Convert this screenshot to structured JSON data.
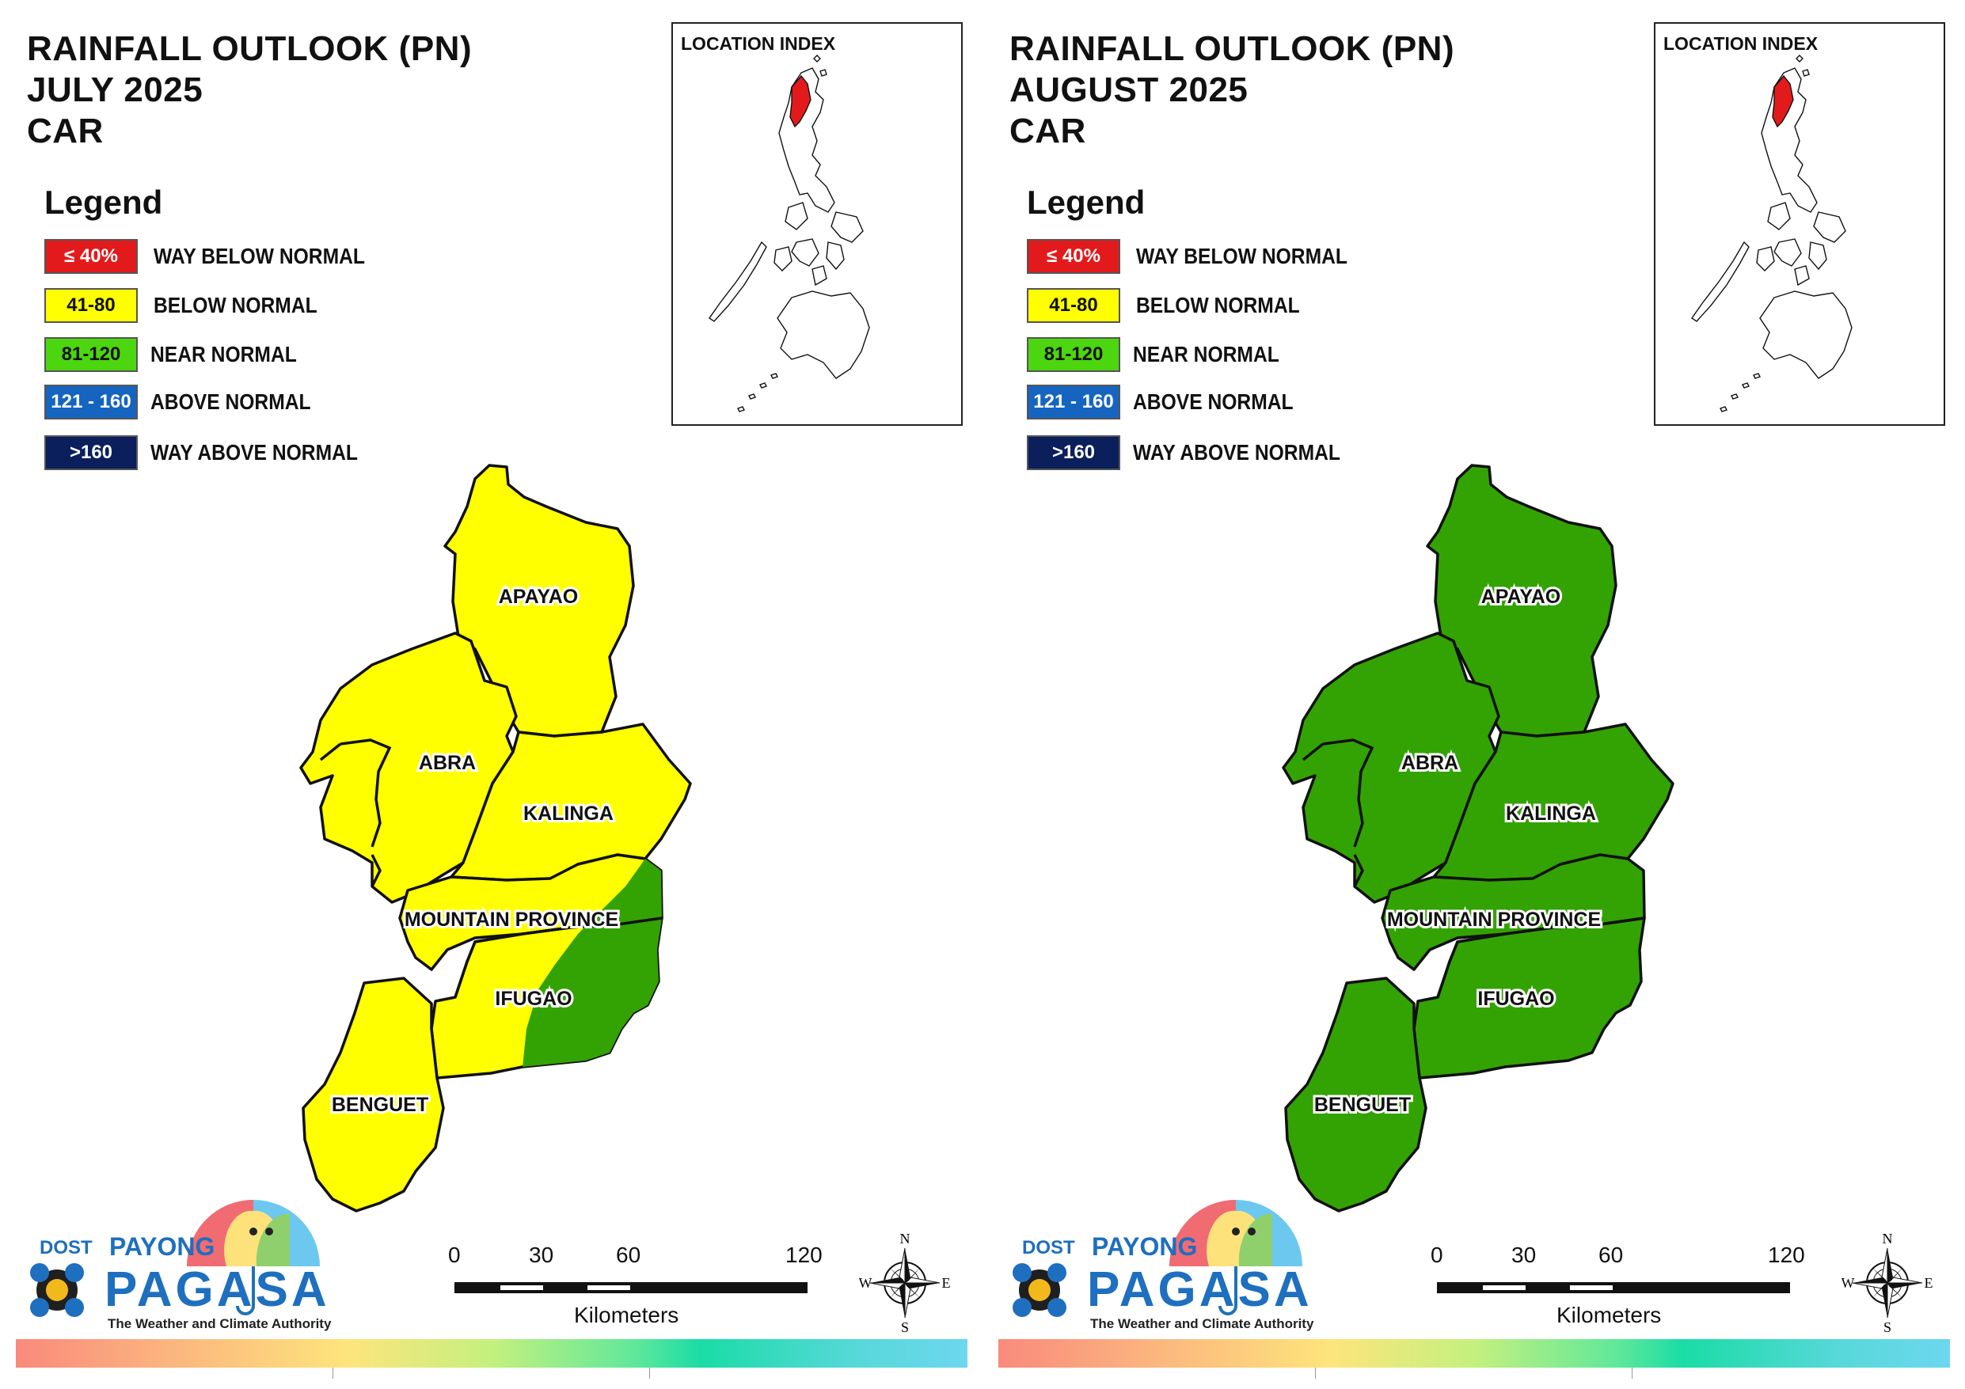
{
  "panels": [
    {
      "title_lines": [
        "RAINFALL OUTLOOK (PN)",
        "JULY 2025",
        "CAR"
      ],
      "legend_heading": "Legend",
      "legend": [
        {
          "swatch": "≤ 40%",
          "label": "WAY BELOW NORMAL",
          "color": "#e31a1c",
          "text_color": "#ffffff"
        },
        {
          "swatch": "41-80",
          "label": "BELOW NORMAL",
          "color": "#ffff00",
          "text_color": "#111111"
        },
        {
          "swatch": "81-120",
          "label": "NEAR NORMAL",
          "color": "#4cd60f",
          "text_color": "#111111"
        },
        {
          "swatch": "121 - 160",
          "label": "ABOVE NORMAL",
          "color": "#1565c0",
          "text_color": "#ffffff"
        },
        {
          "swatch": ">160",
          "label": "WAY ABOVE NORMAL",
          "color": "#0a1f5c",
          "text_color": "#ffffff"
        }
      ],
      "inset_title": "LOCATION INDEX",
      "provinces": {
        "apayao": {
          "label": "APAYAO",
          "category": "BELOW NORMAL",
          "fill": "#ffff00"
        },
        "abra": {
          "label": "ABRA",
          "category": "BELOW NORMAL",
          "fill": "#ffff00"
        },
        "kalinga": {
          "label": "KALINGA",
          "category": "BELOW NORMAL",
          "fill": "#ffff00"
        },
        "mountain_province": {
          "label": "MOUNTAIN PROVINCE",
          "category": "BELOW NORMAL",
          "fill": "#ffff00"
        },
        "ifugao": {
          "label": "IFUGAO",
          "category": "BELOW NORMAL / NEAR NORMAL",
          "fill": "#ffff00"
        },
        "benguet": {
          "label": "BENGUET",
          "category": "BELOW NORMAL",
          "fill": "#ffff00"
        }
      },
      "partial_near_normal_fill": "#33a303",
      "scale_numbers": [
        "0",
        "30",
        "60",
        "120"
      ],
      "scale_unit": "Kilometers",
      "compass": {
        "n": "N",
        "e": "E",
        "s": "S",
        "w": "W"
      },
      "logo": {
        "dost": "DOST",
        "payong": "PAYONG",
        "pagasa": "PAGASA",
        "tagline": "The Weather and Climate Authority"
      }
    },
    {
      "title_lines": [
        "RAINFALL OUTLOOK (PN)",
        "AUGUST 2025",
        "CAR"
      ],
      "legend_heading": "Legend",
      "legend": [
        {
          "swatch": "≤ 40%",
          "label": "WAY BELOW NORMAL",
          "color": "#e31a1c",
          "text_color": "#ffffff"
        },
        {
          "swatch": "41-80",
          "label": "BELOW NORMAL",
          "color": "#ffff00",
          "text_color": "#111111"
        },
        {
          "swatch": "81-120",
          "label": "NEAR NORMAL",
          "color": "#4cd60f",
          "text_color": "#111111"
        },
        {
          "swatch": "121 - 160",
          "label": "ABOVE NORMAL",
          "color": "#1565c0",
          "text_color": "#ffffff"
        },
        {
          "swatch": ">160",
          "label": "WAY ABOVE NORMAL",
          "color": "#0a1f5c",
          "text_color": "#ffffff"
        }
      ],
      "inset_title": "LOCATION INDEX",
      "provinces": {
        "apayao": {
          "label": "APAYAO",
          "category": "NEAR NORMAL",
          "fill": "#33a303"
        },
        "abra": {
          "label": "ABRA",
          "category": "NEAR NORMAL",
          "fill": "#33a303"
        },
        "kalinga": {
          "label": "KALINGA",
          "category": "NEAR NORMAL",
          "fill": "#33a303"
        },
        "mountain_province": {
          "label": "MOUNTAIN PROVINCE",
          "category": "NEAR NORMAL",
          "fill": "#33a303"
        },
        "ifugao": {
          "label": "IFUGAO",
          "category": "NEAR NORMAL",
          "fill": "#33a303"
        },
        "benguet": {
          "label": "BENGUET",
          "category": "NEAR NORMAL",
          "fill": "#33a303"
        }
      },
      "partial_near_normal_fill": "#33a303",
      "scale_numbers": [
        "0",
        "30",
        "60",
        "120"
      ],
      "scale_unit": "Kilometers",
      "compass": {
        "n": "N",
        "e": "E",
        "s": "S",
        "w": "W"
      },
      "logo": {
        "dost": "DOST",
        "payong": "PAYONG",
        "pagasa": "PAGASA",
        "tagline": "The Weather and Climate Authority"
      }
    }
  ]
}
